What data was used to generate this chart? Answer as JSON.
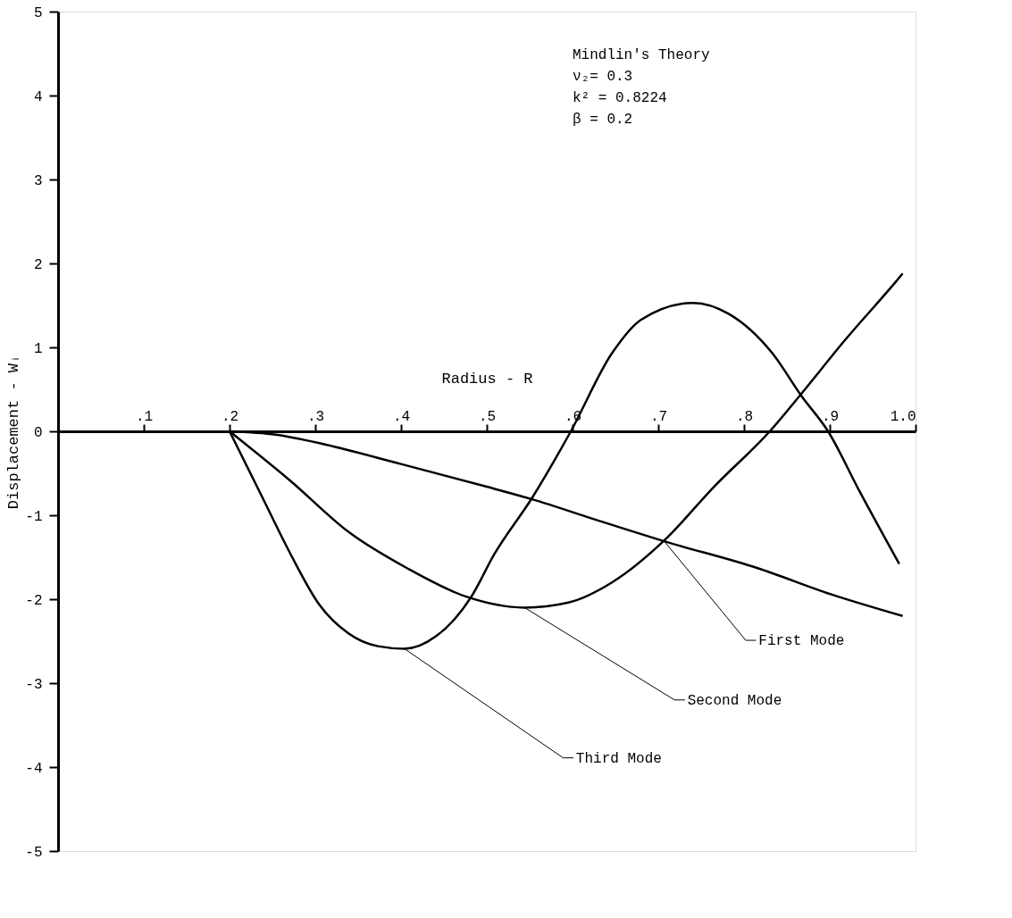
{
  "chart_data": {
    "type": "line",
    "xlabel": "Radius - R",
    "ylabel": "Displacement - Wᵢ",
    "annotations": [
      "Mindlin's Theory",
      "ν₂= 0.3",
      "k² = 0.8224",
      "β = 0.2"
    ],
    "xlim": [
      0,
      1.0
    ],
    "ylim": [
      -5,
      5
    ],
    "xticks": [
      {
        "value": 0.1,
        "label": ".1"
      },
      {
        "value": 0.2,
        "label": ".2"
      },
      {
        "value": 0.3,
        "label": ".3"
      },
      {
        "value": 0.4,
        "label": ".4"
      },
      {
        "value": 0.5,
        "label": ".5"
      },
      {
        "value": 0.6,
        "label": ".6"
      },
      {
        "value": 0.7,
        "label": ".7"
      },
      {
        "value": 0.8,
        "label": ".8"
      },
      {
        "value": 0.9,
        "label": ".9"
      },
      {
        "value": 1.0,
        "label": "1.0"
      }
    ],
    "yticks": [
      -5,
      -4,
      -3,
      -2,
      -1,
      0,
      1,
      2,
      3,
      4,
      5
    ],
    "grid": false,
    "marker": "none",
    "line_style": "solid",
    "series": [
      {
        "name": "First Mode",
        "color": "#000000",
        "x": [
          0.2,
          0.254,
          0.3,
          0.4,
          0.5,
          0.553,
          0.629,
          0.707,
          0.816,
          0.901,
          0.985
        ],
        "values": [
          0,
          -0.04,
          -0.13,
          -0.39,
          -0.66,
          -0.81,
          -1.06,
          -1.31,
          -1.63,
          -1.94,
          -2.2
        ]
      },
      {
        "name": "Second Mode",
        "color": "#000000",
        "x": [
          0.2,
          0.271,
          0.339,
          0.407,
          0.476,
          0.544,
          0.595,
          0.646,
          0.707,
          0.765,
          0.83,
          0.867,
          0.918,
          0.976,
          0.985
        ],
        "values": [
          0,
          -0.59,
          -1.2,
          -1.63,
          -1.97,
          -2.1,
          -2.04,
          -1.8,
          -1.3,
          -0.66,
          0,
          0.45,
          1.09,
          1.77,
          1.88
        ]
      },
      {
        "name": "Third Mode",
        "color": "#000000",
        "x": [
          0.2,
          0.237,
          0.271,
          0.305,
          0.339,
          0.373,
          0.404,
          0.441,
          0.482,
          0.509,
          0.553,
          0.598,
          0.646,
          0.68,
          0.741,
          0.782,
          0.833,
          0.867,
          0.898,
          0.935,
          0.981
        ],
        "values": [
          0,
          -0.76,
          -1.46,
          -2.07,
          -2.41,
          -2.56,
          -2.59,
          -2.44,
          -1.97,
          -1.46,
          -0.79,
          0,
          0.93,
          1.33,
          1.53,
          1.4,
          0.93,
          0.42,
          0,
          -0.72,
          -1.58
        ]
      }
    ]
  }
}
